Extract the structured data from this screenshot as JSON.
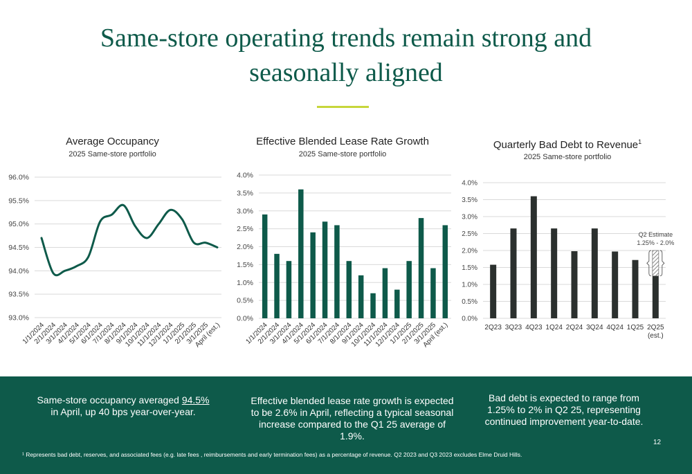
{
  "title_line1": "Same-store operating trends remain strong and",
  "title_line2": "seasonally aligned",
  "charts": {
    "occupancy": {
      "title": "Average Occupancy",
      "subtitle": "2025 Same-store portfolio"
    },
    "lease": {
      "title": "Effective Blended Lease Rate Growth",
      "subtitle": "2025 Same-store portfolio"
    },
    "baddebt": {
      "title": "Quarterly Bad Debt to Revenue",
      "title_sup": "1",
      "subtitle": "2025 Same-store portfolio",
      "estimate_label_1": "Q2 Estimate",
      "estimate_label_2": "1.25% - 2.0%"
    }
  },
  "chart_data": [
    {
      "type": "line",
      "title": "Average Occupancy",
      "subtitle": "2025 Same-store portfolio",
      "color": "#0e5a4a",
      "x": [
        "1/1/2024",
        "2/1/2024",
        "3/1/2024",
        "4/1/2024",
        "5/1/2024",
        "6/1/2024",
        "7/1/2024",
        "8/1/2024",
        "9/1/2024",
        "10/1/2024",
        "11/1/2024",
        "12/1/2024",
        "1/1/2025",
        "2/1/2025",
        "3/1/2025",
        "April (est.)"
      ],
      "values": [
        94.7,
        93.95,
        94.0,
        94.1,
        94.3,
        95.05,
        95.2,
        95.4,
        94.95,
        94.7,
        95.0,
        95.3,
        95.1,
        94.6,
        94.6,
        94.5
      ],
      "ylim": [
        93.0,
        96.0
      ],
      "yticks": [
        "93.0%",
        "93.5%",
        "94.0%",
        "94.5%",
        "95.0%",
        "95.5%",
        "96.0%"
      ],
      "grid": true
    },
    {
      "type": "bar",
      "title": "Effective Blended Lease Rate Growth",
      "subtitle": "2025 Same-store portfolio",
      "color": "#0e5a4a",
      "categories": [
        "1/1/2024",
        "2/1/2024",
        "3/1/2024",
        "4/1/2024",
        "5/1/2024",
        "6/1/2024",
        "7/1/2024",
        "8/1/2024",
        "9/1/2024",
        "10/1/2024",
        "11/1/2024",
        "12/1/2024",
        "1/1/2025",
        "2/1/2025",
        "3/1/2025",
        "April (est.)"
      ],
      "values": [
        2.9,
        1.8,
        1.6,
        3.6,
        2.4,
        2.7,
        2.6,
        1.6,
        1.2,
        0.7,
        1.4,
        0.8,
        1.6,
        2.8,
        1.4,
        2.6
      ],
      "ylim": [
        0,
        4.0
      ],
      "yticks": [
        "0.0%",
        "0.5%",
        "1.0%",
        "1.5%",
        "2.0%",
        "2.5%",
        "3.0%",
        "3.5%",
        "4.0%"
      ],
      "grid": true
    },
    {
      "type": "bar",
      "title": "Quarterly Bad Debt to Revenue",
      "subtitle": "2025 Same-store portfolio",
      "color": "#2b302e",
      "categories": [
        "2Q23",
        "3Q23",
        "4Q23",
        "1Q24",
        "2Q24",
        "3Q24",
        "4Q24",
        "1Q25",
        "2Q25\n(est.)"
      ],
      "values": [
        1.58,
        2.65,
        3.6,
        2.65,
        1.98,
        2.65,
        1.97,
        1.72,
        1.25
      ],
      "estimate_range": [
        1.25,
        2.0
      ],
      "ylim": [
        0,
        4.0
      ],
      "yticks": [
        "0.0%",
        "0.5%",
        "1.0%",
        "1.5%",
        "2.0%",
        "2.5%",
        "3.0%",
        "3.5%",
        "4.0%"
      ],
      "grid": true
    }
  ],
  "band": {
    "occ_text_pre": "Same-store occupancy averaged ",
    "occ_text_highlight": "94.5%",
    "occ_text_post": " in April, up 40 bps year-over-year.",
    "lease_text": "Effective blended lease rate growth is expected to be 2.6% in April, reflecting a typical seasonal increase compared to the Q1 25 average of 1.9%.",
    "baddebt_text": "Bad debt is expected to range from 1.25% to 2% in Q2 25, representing continued improvement year-to-date."
  },
  "page_number": "12",
  "footnote": "¹ Represents bad debt, reserves, and associated fees (e.g. late fees , reimbursements and early termination fees) as a percentage of revenue. Q2 2023 and Q3 2023 excludes Elme Druid Hills."
}
